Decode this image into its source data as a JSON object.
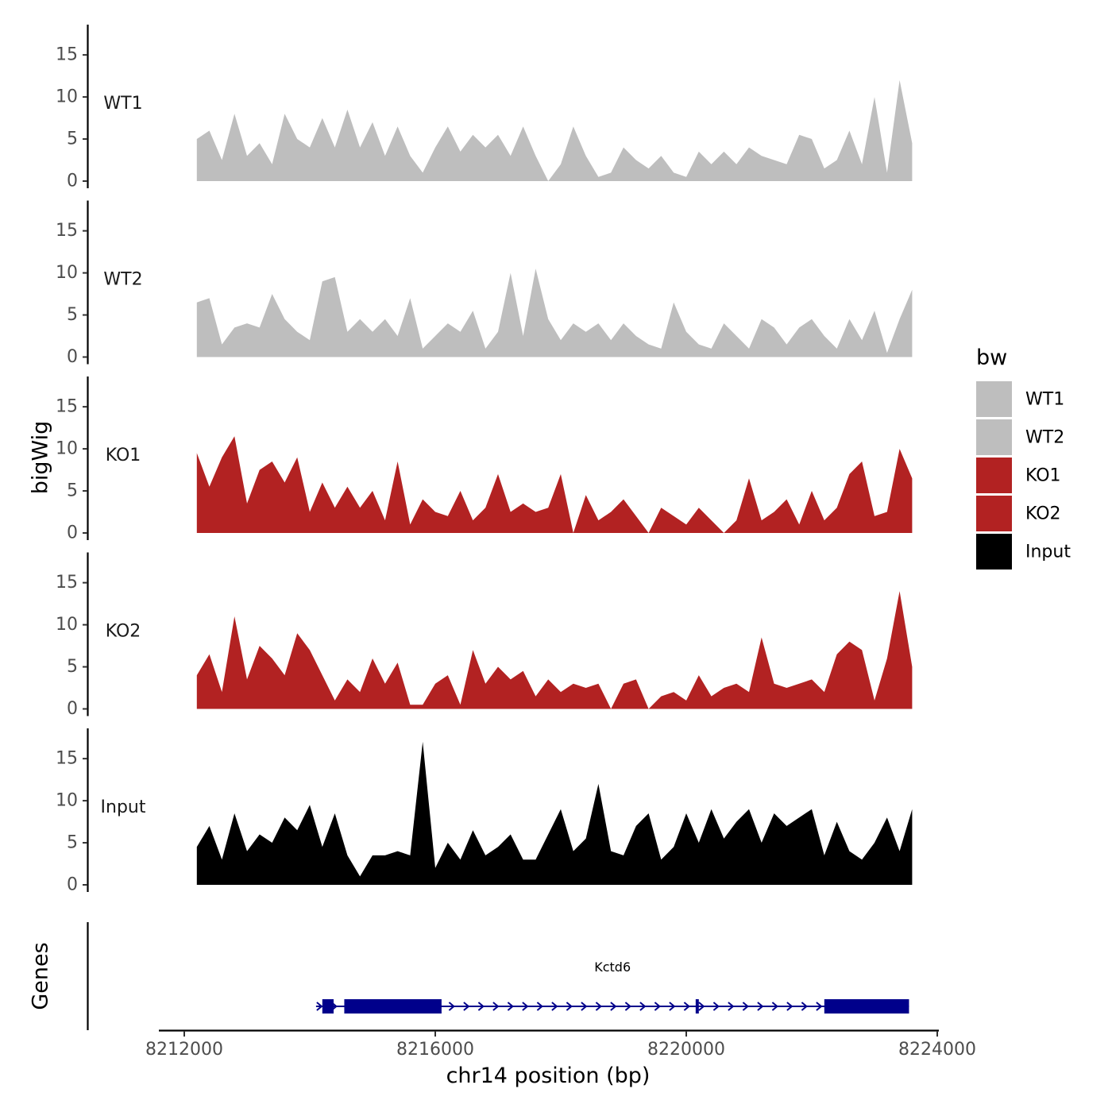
{
  "chart_data": {
    "type": "area",
    "x_axis": {
      "title": "chr14 position (bp)",
      "range": [
        8211900,
        8224000
      ],
      "ticks": [
        8212000,
        8216000,
        8220000,
        8224000
      ],
      "tick_labels": [
        "8212000",
        "8216000",
        "8220000",
        "8224000"
      ]
    },
    "y_axis": {
      "title": "bigWig",
      "range": [
        0,
        18.6
      ],
      "ticks": [
        0,
        5,
        10,
        15
      ],
      "tick_labels": [
        "0",
        "5",
        "10",
        "15"
      ]
    },
    "track_x": [
      8212200,
      8212400,
      8212600,
      8212800,
      8213000,
      8213200,
      8213400,
      8213600,
      8213800,
      8214000,
      8214200,
      8214400,
      8214600,
      8214800,
      8215000,
      8215200,
      8215400,
      8215600,
      8215800,
      8216000,
      8216200,
      8216400,
      8216600,
      8216800,
      8217000,
      8217200,
      8217400,
      8217600,
      8217800,
      8218000,
      8218200,
      8218400,
      8218600,
      8218800,
      8219000,
      8219200,
      8219400,
      8219600,
      8219800,
      8220000,
      8220200,
      8220400,
      8220600,
      8220800,
      8221000,
      8221200,
      8221400,
      8221600,
      8221800,
      8222000,
      8222200,
      8222400,
      8222600,
      8222800,
      8223000,
      8223200,
      8223400,
      8223600
    ],
    "series": [
      {
        "name": "WT1",
        "color": "#bebebe",
        "values": [
          5.0,
          6.0,
          2.5,
          8.0,
          3.0,
          4.5,
          2.0,
          8.0,
          5.0,
          4.0,
          7.5,
          4.0,
          8.5,
          4.0,
          7.0,
          3.0,
          6.5,
          3.0,
          1.0,
          4.0,
          6.5,
          3.5,
          5.5,
          4.0,
          5.5,
          3.0,
          6.5,
          3.0,
          0.0,
          2.0,
          6.5,
          3.0,
          0.5,
          1.0,
          4.0,
          2.5,
          1.5,
          3.0,
          1.0,
          0.5,
          3.5,
          2.0,
          3.5,
          2.0,
          4.0,
          3.0,
          2.5,
          2.0,
          5.5,
          5.0,
          1.5,
          2.5,
          6.0,
          2.0,
          10.0,
          1.0,
          12.0,
          4.5
        ]
      },
      {
        "name": "WT2",
        "color": "#bebebe",
        "values": [
          6.5,
          7.0,
          1.5,
          3.5,
          4.0,
          3.5,
          7.5,
          4.5,
          3.0,
          2.0,
          9.0,
          9.5,
          3.0,
          4.5,
          3.0,
          4.5,
          2.5,
          7.0,
          1.0,
          2.5,
          4.0,
          3.0,
          5.5,
          1.0,
          3.0,
          10.0,
          2.5,
          10.5,
          4.5,
          2.0,
          4.0,
          3.0,
          4.0,
          2.0,
          4.0,
          2.5,
          1.5,
          1.0,
          6.5,
          3.0,
          1.5,
          1.0,
          4.0,
          2.5,
          1.0,
          4.5,
          3.5,
          1.5,
          3.5,
          4.5,
          2.5,
          1.0,
          4.5,
          2.0,
          5.5,
          0.5,
          4.5,
          8.0
        ]
      },
      {
        "name": "KO1",
        "color": "#b22222",
        "values": [
          9.5,
          5.5,
          9.0,
          11.5,
          3.5,
          7.5,
          8.5,
          6.0,
          9.0,
          2.5,
          6.0,
          3.0,
          5.5,
          3.0,
          5.0,
          1.5,
          8.5,
          1.0,
          4.0,
          2.5,
          2.0,
          5.0,
          1.5,
          3.0,
          7.0,
          2.5,
          3.5,
          2.5,
          3.0,
          7.0,
          0.0,
          4.5,
          1.5,
          2.5,
          4.0,
          2.0,
          0.0,
          3.0,
          2.0,
          1.0,
          3.0,
          1.5,
          0.0,
          1.5,
          6.5,
          1.5,
          2.5,
          4.0,
          1.0,
          5.0,
          1.5,
          3.0,
          7.0,
          8.5,
          2.0,
          2.5,
          10.0,
          6.5
        ]
      },
      {
        "name": "KO2",
        "color": "#b22222",
        "values": [
          4.0,
          6.5,
          2.0,
          11.0,
          3.5,
          7.5,
          6.0,
          4.0,
          9.0,
          7.0,
          4.0,
          1.0,
          3.5,
          2.0,
          6.0,
          3.0,
          5.5,
          0.5,
          0.5,
          3.0,
          4.0,
          0.5,
          7.0,
          3.0,
          5.0,
          3.5,
          4.5,
          1.5,
          3.5,
          2.0,
          3.0,
          2.5,
          3.0,
          0.0,
          3.0,
          3.5,
          0.0,
          1.5,
          2.0,
          1.0,
          4.0,
          1.5,
          2.5,
          3.0,
          2.0,
          8.5,
          3.0,
          2.5,
          3.0,
          3.5,
          2.0,
          6.5,
          8.0,
          7.0,
          1.0,
          6.0,
          14.0,
          5.0
        ]
      },
      {
        "name": "Input",
        "color": "#000000",
        "values": [
          4.5,
          7.0,
          3.0,
          8.5,
          4.0,
          6.0,
          5.0,
          8.0,
          6.5,
          9.5,
          4.5,
          8.5,
          3.5,
          1.0,
          3.5,
          3.5,
          4.0,
          3.5,
          17.0,
          2.0,
          5.0,
          3.0,
          6.5,
          3.5,
          4.5,
          6.0,
          3.0,
          3.0,
          6.0,
          9.0,
          4.0,
          5.5,
          12.0,
          4.0,
          3.5,
          7.0,
          8.5,
          3.0,
          4.5,
          8.5,
          5.0,
          9.0,
          5.5,
          7.5,
          9.0,
          5.0,
          8.5,
          7.0,
          8.0,
          9.0,
          3.5,
          7.5,
          4.0,
          3.0,
          5.0,
          8.0,
          4.0,
          9.0
        ]
      }
    ],
    "legend": {
      "title": "bw",
      "position": "right",
      "entries": [
        {
          "label": "WT1",
          "color": "#bebebe"
        },
        {
          "label": "WT2",
          "color": "#bebebe"
        },
        {
          "label": "KO1",
          "color": "#b22222"
        },
        {
          "label": "KO2",
          "color": "#b22222"
        },
        {
          "label": "Input",
          "color": "#000000"
        }
      ]
    },
    "gene_track": {
      "title": "Genes",
      "gene_name": "Kctd6",
      "color": "#00008b",
      "strand": "+",
      "span": [
        8214100,
        8223550
      ],
      "exons": [
        [
          8214200,
          8214380
        ],
        [
          8214550,
          8216100
        ],
        [
          8220150,
          8220200
        ],
        [
          8222200,
          8223550
        ]
      ]
    }
  }
}
